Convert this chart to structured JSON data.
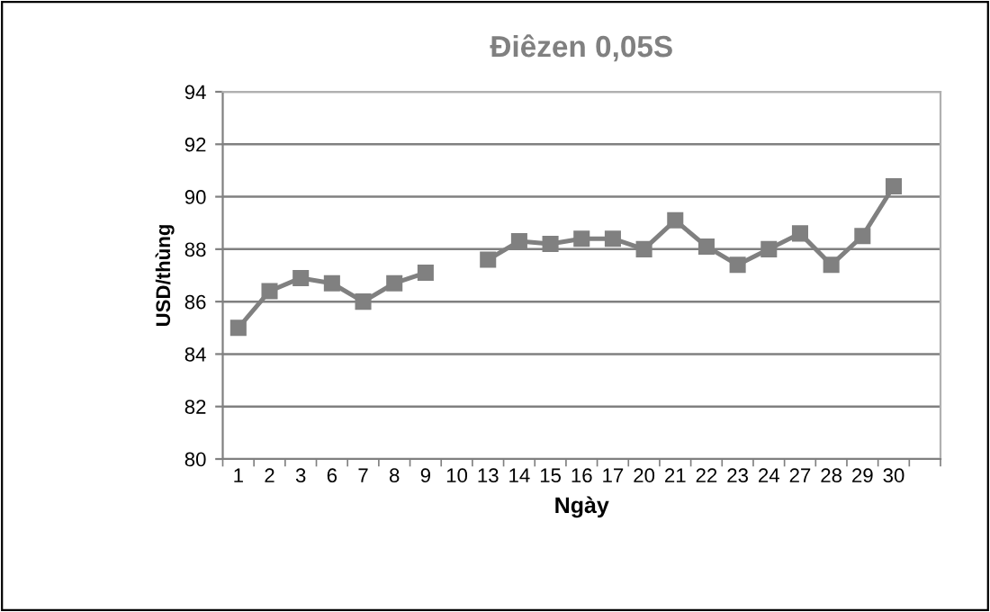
{
  "chart_data": {
    "type": "line",
    "title": "Điêzen 0,05S",
    "xlabel": "Ngày",
    "ylabel": "USD/thùng",
    "categories": [
      "1",
      "2",
      "3",
      "6",
      "7",
      "8",
      "9",
      "10",
      "13",
      "14",
      "15",
      "16",
      "17",
      "20",
      "21",
      "22",
      "23",
      "24",
      "27",
      "28",
      "29",
      "30",
      null
    ],
    "series": [
      {
        "color": "#808080",
        "values": [
          85.0,
          86.4,
          86.9,
          86.7,
          86.0,
          86.7,
          87.1,
          null,
          87.6,
          88.3,
          88.2,
          88.4,
          88.4,
          88.0,
          89.1,
          88.1,
          87.4,
          88.0,
          88.6,
          87.4,
          88.5,
          90.4,
          null
        ]
      }
    ],
    "ylim": [
      80,
      94
    ],
    "yticks": [
      80,
      82,
      84,
      86,
      88,
      90,
      92,
      94
    ],
    "grid": "y",
    "legend": false,
    "marker": "square",
    "line_style": "solid"
  }
}
